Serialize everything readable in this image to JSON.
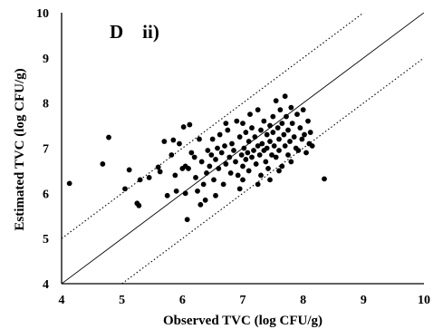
{
  "chart_data": {
    "type": "scatter",
    "panel_label": "D    ii)",
    "xlabel": "Observed TVC (log CFU/g)",
    "ylabel": "Estimated TVC (log CFU/g)",
    "xlim": [
      4,
      10
    ],
    "ylim": [
      4,
      10
    ],
    "x_ticks": [
      "4",
      "5",
      "6",
      "7",
      "8",
      "9",
      "10"
    ],
    "y_ticks": [
      "4",
      "5",
      "6",
      "7",
      "8",
      "9",
      "10"
    ],
    "grid": false,
    "lines": [
      {
        "type": "identity",
        "style": "solid",
        "x": [
          4,
          10
        ],
        "y": [
          4,
          10
        ]
      },
      {
        "type": "upper-bound",
        "style": "dotted",
        "x": [
          4,
          9
        ],
        "y": [
          5,
          10
        ]
      },
      {
        "type": "lower-bound",
        "style": "dotted",
        "x": [
          5,
          10
        ],
        "y": [
          4,
          9
        ]
      }
    ],
    "points": [
      [
        4.13,
        6.22
      ],
      [
        4.68,
        6.65
      ],
      [
        4.78,
        7.24
      ],
      [
        5.05,
        6.1
      ],
      [
        5.12,
        6.52
      ],
      [
        5.25,
        5.78
      ],
      [
        5.28,
        5.73
      ],
      [
        5.3,
        6.3
      ],
      [
        5.45,
        6.35
      ],
      [
        5.6,
        6.58
      ],
      [
        5.63,
        6.48
      ],
      [
        5.7,
        7.15
      ],
      [
        5.82,
        6.85
      ],
      [
        5.85,
        7.18
      ],
      [
        5.88,
        6.4
      ],
      [
        5.9,
        6.05
      ],
      [
        5.95,
        7.1
      ],
      [
        6.02,
        7.47
      ],
      [
        6.05,
        6.6
      ],
      [
        6.05,
        6.0
      ],
      [
        6.08,
        5.42
      ],
      [
        6.1,
        6.55
      ],
      [
        6.12,
        7.52
      ],
      [
        6.15,
        6.9
      ],
      [
        6.2,
        6.8
      ],
      [
        6.22,
        6.35
      ],
      [
        6.25,
        6.05
      ],
      [
        6.28,
        7.2
      ],
      [
        6.3,
        5.75
      ],
      [
        6.32,
        6.7
      ],
      [
        6.35,
        6.2
      ],
      [
        6.38,
        5.85
      ],
      [
        6.4,
        6.45
      ],
      [
        6.42,
        6.95
      ],
      [
        6.45,
        6.6
      ],
      [
        6.48,
        6.85
      ],
      [
        6.5,
        7.2
      ],
      [
        6.52,
        6.3
      ],
      [
        6.55,
        6.75
      ],
      [
        6.58,
        7.0
      ],
      [
        6.6,
        6.55
      ],
      [
        6.62,
        7.3
      ],
      [
        6.65,
        6.9
      ],
      [
        6.68,
        6.2
      ],
      [
        6.7,
        7.05
      ],
      [
        6.72,
        6.65
      ],
      [
        6.75,
        7.4
      ],
      [
        6.78,
        6.8
      ],
      [
        6.8,
        6.45
      ],
      [
        6.82,
        7.1
      ],
      [
        6.85,
        6.95
      ],
      [
        6.88,
        6.7
      ],
      [
        6.9,
        7.6
      ],
      [
        6.92,
        6.4
      ],
      [
        6.95,
        7.25
      ],
      [
        6.98,
        6.85
      ],
      [
        7.0,
        7.55
      ],
      [
        7.0,
        6.6
      ],
      [
        7.02,
        7.0
      ],
      [
        7.05,
        6.75
      ],
      [
        7.05,
        7.35
      ],
      [
        7.08,
        6.9
      ],
      [
        7.1,
        6.5
      ],
      [
        7.1,
        7.15
      ],
      [
        7.12,
        7.75
      ],
      [
        7.15,
        6.8
      ],
      [
        7.15,
        7.45
      ],
      [
        7.18,
        6.95
      ],
      [
        7.2,
        7.25
      ],
      [
        7.22,
        6.65
      ],
      [
        7.25,
        7.05
      ],
      [
        7.25,
        7.85
      ],
      [
        7.28,
        6.85
      ],
      [
        7.3,
        7.4
      ],
      [
        7.3,
        6.4
      ],
      [
        7.32,
        7.1
      ],
      [
        7.35,
        6.95
      ],
      [
        7.35,
        7.6
      ],
      [
        7.38,
        6.7
      ],
      [
        7.4,
        7.3
      ],
      [
        7.4,
        7.0
      ],
      [
        7.42,
        6.55
      ],
      [
        7.45,
        7.5
      ],
      [
        7.45,
        7.15
      ],
      [
        7.48,
        6.85
      ],
      [
        7.5,
        7.7
      ],
      [
        7.5,
        7.35
      ],
      [
        7.52,
        7.05
      ],
      [
        7.55,
        6.8
      ],
      [
        7.55,
        8.05
      ],
      [
        7.58,
        7.45
      ],
      [
        7.6,
        7.2
      ],
      [
        7.6,
        6.95
      ],
      [
        7.62,
        7.85
      ],
      [
        7.65,
        7.55
      ],
      [
        7.65,
        6.6
      ],
      [
        7.68,
        7.3
      ],
      [
        7.7,
        7.05
      ],
      [
        7.7,
        8.15
      ],
      [
        7.72,
        7.7
      ],
      [
        7.75,
        6.85
      ],
      [
        7.75,
        7.4
      ],
      [
        7.78,
        7.15
      ],
      [
        7.8,
        7.9
      ],
      [
        7.8,
        6.7
      ],
      [
        7.82,
        7.55
      ],
      [
        7.85,
        7.25
      ],
      [
        7.88,
        7.0
      ],
      [
        7.9,
        7.75
      ],
      [
        7.92,
        6.95
      ],
      [
        7.95,
        7.45
      ],
      [
        7.98,
        7.2
      ],
      [
        8.0,
        7.85
      ],
      [
        8.02,
        7.3
      ],
      [
        8.05,
        6.9
      ],
      [
        8.08,
        7.6
      ],
      [
        8.1,
        7.1
      ],
      [
        8.12,
        7.35
      ],
      [
        8.15,
        7.05
      ],
      [
        8.35,
        6.32
      ],
      [
        6.0,
        6.55
      ],
      [
        6.55,
        5.95
      ],
      [
        6.95,
        6.1
      ],
      [
        7.45,
        6.3
      ],
      [
        5.75,
        5.95
      ],
      [
        6.72,
        7.55
      ],
      [
        7.25,
        6.2
      ],
      [
        7.6,
        6.5
      ],
      [
        7.0,
        6.3
      ]
    ]
  }
}
